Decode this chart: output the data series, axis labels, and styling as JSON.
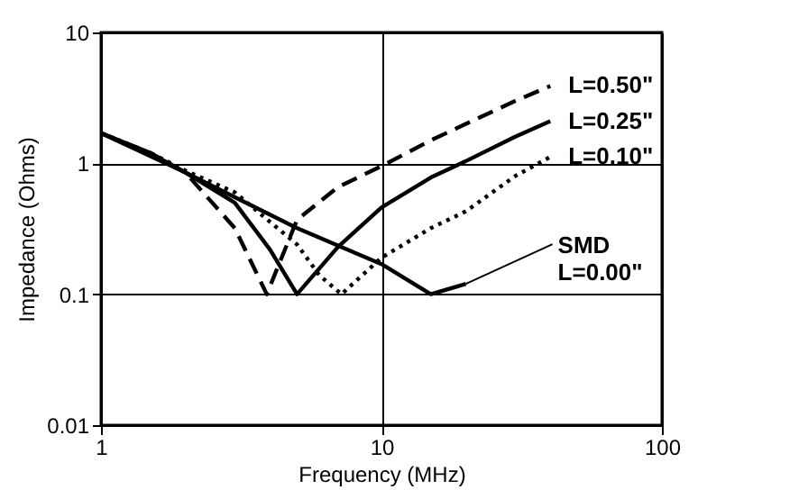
{
  "chart_data": {
    "type": "line",
    "xlabel": "Frequency (MHz)",
    "ylabel": "Impedance (Ohms)",
    "log": "xy",
    "grid": true,
    "xlim": [
      1,
      100
    ],
    "xticks": [
      1,
      10,
      100
    ],
    "ylim": [
      0.01,
      10
    ],
    "yticks": [
      0.01,
      0.1,
      1,
      10
    ],
    "series": [
      {
        "name": "L=0.50\"",
        "color": "#000000",
        "line_style": "dashed",
        "x": [
          1,
          1.5,
          2,
          3,
          3.9,
          5,
          7,
          10,
          15,
          20,
          30,
          40
        ],
        "values": [
          1.7,
          1.2,
          0.85,
          0.32,
          0.1,
          0.37,
          0.66,
          0.95,
          1.5,
          2.0,
          3.0,
          3.9
        ]
      },
      {
        "name": "L=0.25\"",
        "color": "#000000",
        "line_style": "solid",
        "x": [
          1,
          1.5,
          2,
          3,
          4,
          5,
          7,
          10,
          15,
          20,
          30,
          40
        ],
        "values": [
          1.7,
          1.2,
          0.85,
          0.5,
          0.22,
          0.1,
          0.23,
          0.46,
          0.78,
          1.04,
          1.6,
          2.1
        ]
      },
      {
        "name": "L=0.10\"",
        "color": "#000000",
        "line_style": "dotted",
        "x": [
          1,
          1.5,
          2,
          3,
          5,
          6,
          7.2,
          10,
          15,
          20,
          30,
          40
        ],
        "values": [
          1.7,
          1.2,
          0.88,
          0.6,
          0.24,
          0.14,
          0.1,
          0.19,
          0.32,
          0.43,
          0.8,
          1.12
        ]
      },
      {
        "color": "#000000",
        "line_style": "solid",
        "x": [
          1,
          2,
          5,
          10,
          15,
          20
        ],
        "values": [
          1.7,
          0.85,
          0.32,
          0.17,
          0.1,
          0.12
        ]
      }
    ],
    "annotations": [
      {
        "text": "SMD\nL=0.00\"",
        "x": 20,
        "y": 0.12
      }
    ]
  }
}
